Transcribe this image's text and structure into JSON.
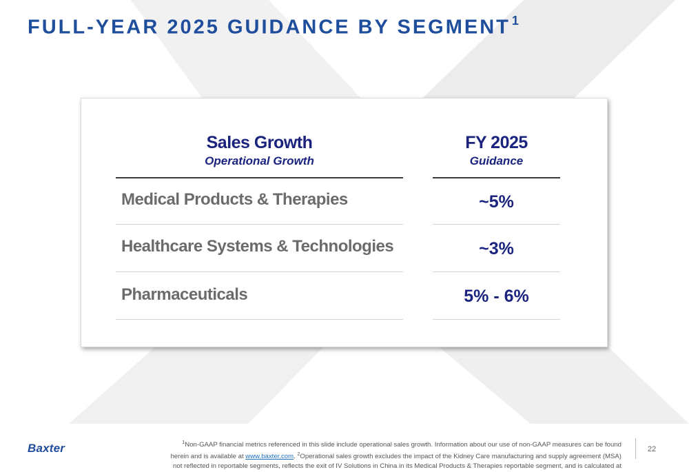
{
  "title": "FULL-YEAR 2025 GUIDANCE BY SEGMENT",
  "title_superscript": "1",
  "table": {
    "left_header": "Sales Growth",
    "left_subheader": "Operational Growth",
    "right_header": "FY 2025",
    "right_subheader": "Guidance",
    "rows": [
      {
        "label": "Medical Products & Therapies",
        "value": "~5%"
      },
      {
        "label": "Healthcare Systems & Technologies",
        "value": "~3%"
      },
      {
        "label": "Pharmaceuticals",
        "value": "5% - 6%"
      }
    ]
  },
  "footer": {
    "logo": "Baxter",
    "note_sup_1": "1",
    "note_part_1": "Non-GAAP financial metrics referenced in this slide include operational sales growth. Information about our use of non-GAAP measures can be found herein and is available at ",
    "note_link": "www.baxter.com",
    "note_part_2": ". ",
    "note_sup_2": "2",
    "note_part_3": "Operational sales growth excludes the impact of the Kidney Care manufacturing and supply agreement (MSA) not reflected in reportable segments, reflects the exit of IV Solutions in China in its Medical Products & Therapies reportable segment, and is calculated at constant currency rates.",
    "page_number": "22"
  },
  "colors": {
    "title_blue": "#1f4e9c",
    "header_navy": "#1a237e",
    "segment_gray": "#6b6b6b",
    "link_blue": "#1f6fbf"
  }
}
